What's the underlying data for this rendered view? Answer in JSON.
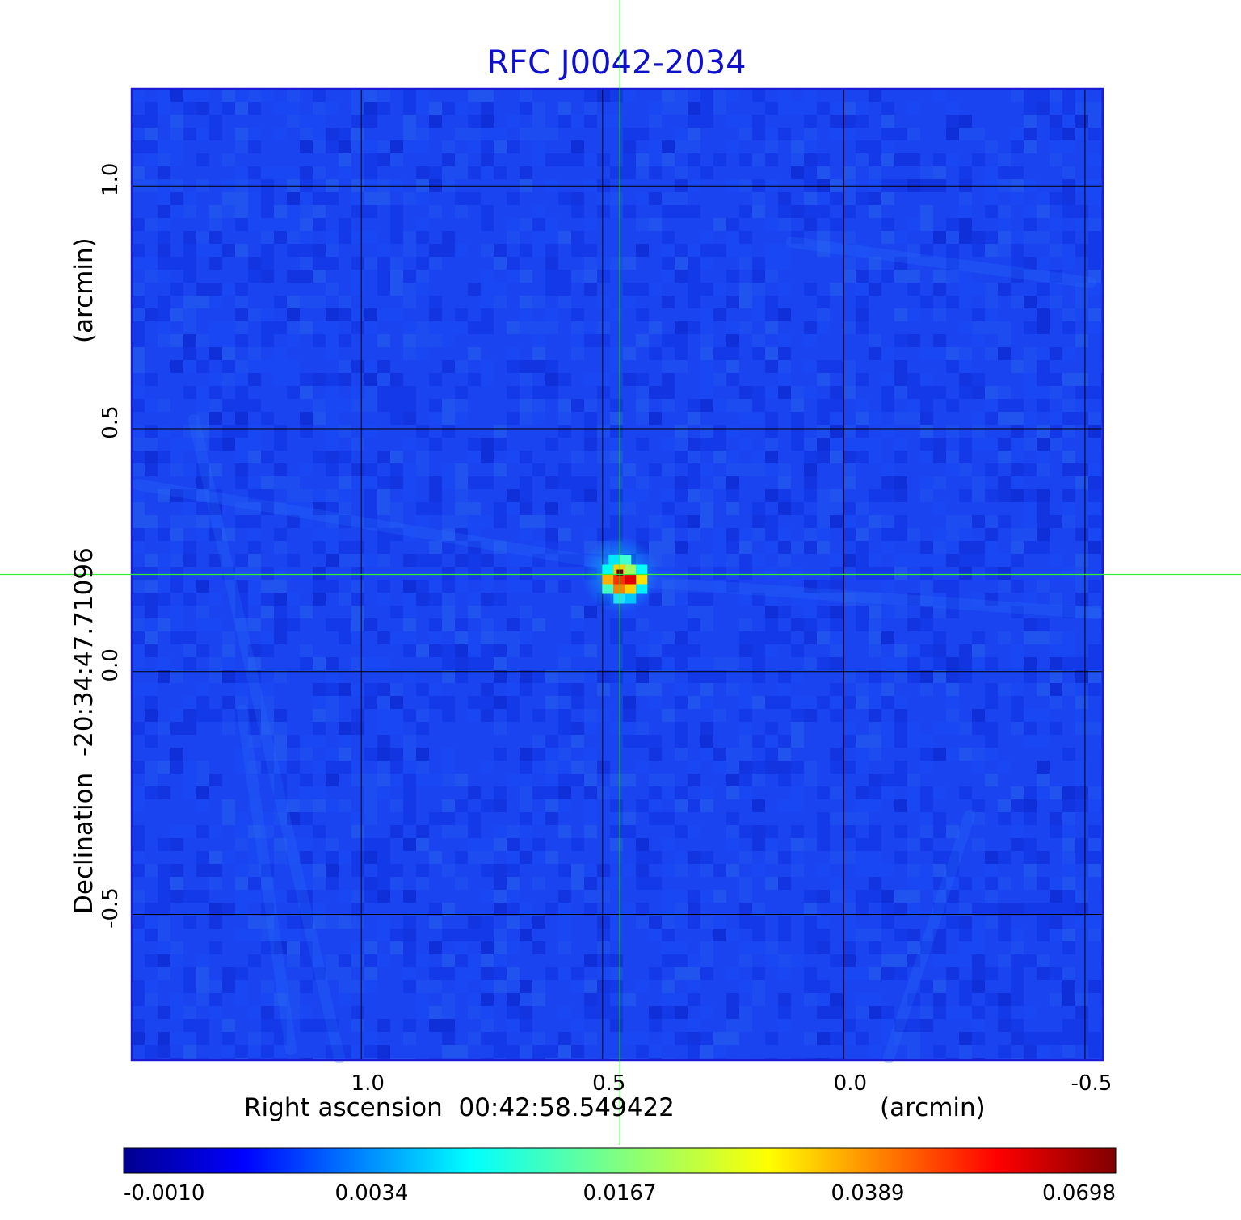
{
  "chart_data": {
    "type": "heatmap",
    "title": "RFC J0042-2034",
    "xlabel": "Right ascension  00:42:58.549422",
    "xlabel_unit": "(arcmin)",
    "ylabel": "Declination  -20:34:47.71096",
    "ylabel_unit": "(arcmin)",
    "x_ticks": [
      "1.0",
      "0.5",
      "0.0",
      "-0.5"
    ],
    "x_tick_values": [
      1.0,
      0.5,
      0.0,
      -0.5
    ],
    "y_ticks": [
      "1.0",
      "0.5",
      "0.0",
      "-0.5"
    ],
    "y_tick_values": [
      1.0,
      0.5,
      0.0,
      -0.5
    ],
    "xlim": [
      1.476,
      -0.537
    ],
    "ylim": [
      -0.8,
      1.2
    ],
    "x_direction": "reversed",
    "grid": true,
    "crosshair": {
      "x": 0.464,
      "y": 0.2
    },
    "peak": {
      "x": 0.464,
      "y": 0.2,
      "value": 0.0698
    },
    "colormap": "jet",
    "colorbar_ticks": [
      "-0.0010",
      "0.0034",
      "0.0167",
      "0.0389",
      "0.0698"
    ],
    "colorbar_values": [
      -0.001,
      0.0034,
      0.0167,
      0.0389,
      0.0698
    ],
    "colorbar_placement": "bottom"
  },
  "colors": {
    "title": "#1010cc",
    "crosshair": "#33ee33",
    "grid": "#000000",
    "frame": "#1c1cd4",
    "background_map": "#1a44f0"
  }
}
